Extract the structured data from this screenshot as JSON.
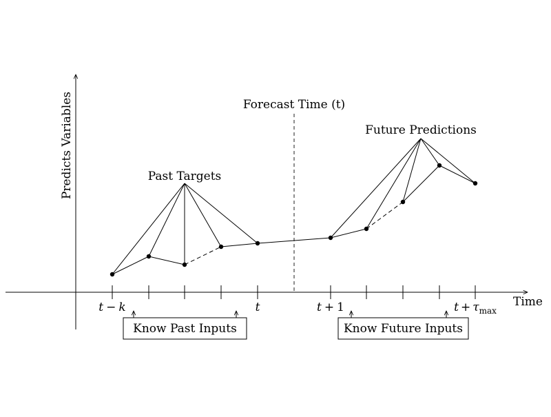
{
  "labels": {
    "y_axis": "Predicts Variables",
    "x_axis": "Time",
    "forecast_time": "Forecast Time (t)",
    "past_targets": "Past Targets",
    "future_predictions": "Future Predictions",
    "know_past_inputs": "Know Past Inputs",
    "know_future_inputs": "Know Future Inputs"
  },
  "ticks": {
    "t_minus_k": {
      "var": "t",
      "op": "−",
      "arg": "k"
    },
    "t": {
      "var": "t"
    },
    "t_plus_1": {
      "var": "t",
      "op": "+",
      "arg": "1"
    },
    "t_plus_tau": {
      "var": "t",
      "op": "+",
      "arg": "τ",
      "sub": "max"
    }
  }
}
